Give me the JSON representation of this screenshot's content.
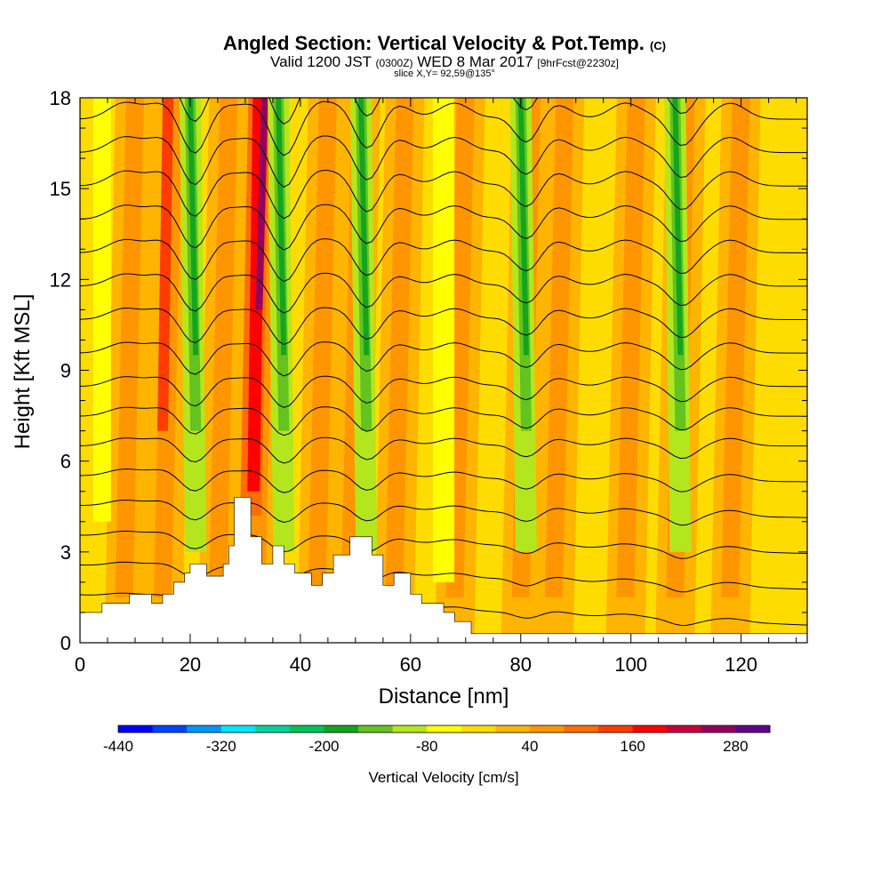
{
  "header": {
    "title": "Angled Section: Vertical Velocity & Pot.Temp.",
    "title_tag": "(C)",
    "valid_prefix": "Valid 1200 JST",
    "valid_utc": "(0300Z)",
    "valid_date": "WED 8 Mar 2017",
    "forecast": "[9hrFcst@2230z]",
    "slice": "slice X,Y= 92,59@135°"
  },
  "chart_data": {
    "type": "heatmap",
    "xlabel": "Distance [nm]",
    "ylabel": "Height [Kft MSL]",
    "xlim": [
      0,
      132
    ],
    "ylim": [
      0,
      18
    ],
    "x_ticks": [
      0,
      20,
      40,
      60,
      80,
      100,
      120
    ],
    "y_ticks": [
      0,
      3,
      6,
      9,
      12,
      15,
      18
    ],
    "colorbar": {
      "label": "Vertical Velocity [cm/s]",
      "min": -440,
      "max": 320,
      "step": 40,
      "tick_values": [
        -440,
        -320,
        -200,
        -80,
        40,
        160,
        280
      ],
      "tick_labels": [
        "-440",
        "-320",
        "-200",
        "-80",
        "40",
        "160",
        "280"
      ],
      "colors": [
        "#0000ff",
        "#0044ff",
        "#0096ff",
        "#00e6ff",
        "#00d29b",
        "#00c35a",
        "#14a51e",
        "#64c31e",
        "#b4e61e",
        "#ffff00",
        "#ffdc00",
        "#ffb400",
        "#ff9600",
        "#ff6e00",
        "#ff3c00",
        "#ff0000",
        "#c8003c",
        "#96005a",
        "#64008c"
      ]
    },
    "updraft_cores_nm": [
      8,
      15,
      25,
      32,
      43,
      49,
      57,
      68,
      80,
      86,
      99,
      108,
      118
    ],
    "downdraft_cores_nm": [
      21,
      37,
      52,
      81,
      109
    ],
    "terrain_kft": [
      [
        0,
        1.0
      ],
      [
        4,
        1.0
      ],
      [
        4,
        1.3
      ],
      [
        9,
        1.3
      ],
      [
        9,
        1.6
      ],
      [
        13,
        1.6
      ],
      [
        13,
        1.3
      ],
      [
        15,
        1.3
      ],
      [
        15,
        1.6
      ],
      [
        17,
        1.6
      ],
      [
        17,
        2.0
      ],
      [
        19,
        2.0
      ],
      [
        19,
        2.3
      ],
      [
        20,
        2.3
      ],
      [
        20,
        2.6
      ],
      [
        23,
        2.6
      ],
      [
        23,
        2.2
      ],
      [
        26,
        2.2
      ],
      [
        26,
        2.6
      ],
      [
        27,
        2.6
      ],
      [
        27,
        3.2
      ],
      [
        28,
        3.2
      ],
      [
        28,
        4.8
      ],
      [
        31,
        4.8
      ],
      [
        31,
        3.5
      ],
      [
        33,
        3.5
      ],
      [
        33,
        2.6
      ],
      [
        35,
        2.6
      ],
      [
        35,
        3.2
      ],
      [
        37,
        3.2
      ],
      [
        37,
        2.6
      ],
      [
        39,
        2.6
      ],
      [
        39,
        2.3
      ],
      [
        42,
        2.3
      ],
      [
        42,
        1.9
      ],
      [
        44,
        1.9
      ],
      [
        44,
        2.3
      ],
      [
        46,
        2.3
      ],
      [
        46,
        2.9
      ],
      [
        49,
        2.9
      ],
      [
        49,
        3.5
      ],
      [
        53,
        3.5
      ],
      [
        53,
        2.9
      ],
      [
        55,
        2.9
      ],
      [
        55,
        1.9
      ],
      [
        57,
        1.9
      ],
      [
        57,
        2.3
      ],
      [
        60,
        2.3
      ],
      [
        60,
        1.6
      ],
      [
        62,
        1.6
      ],
      [
        62,
        1.3
      ],
      [
        66,
        1.3
      ],
      [
        66,
        1.0
      ],
      [
        68,
        1.0
      ],
      [
        68,
        0.7
      ],
      [
        71,
        0.7
      ],
      [
        71,
        0.3
      ],
      [
        132,
        0.3
      ]
    ],
    "theta_contours_C": [
      6,
      8,
      10,
      12,
      14,
      16,
      18,
      20,
      22,
      24,
      26,
      28,
      30,
      32,
      34,
      36,
      38,
      40
    ]
  }
}
